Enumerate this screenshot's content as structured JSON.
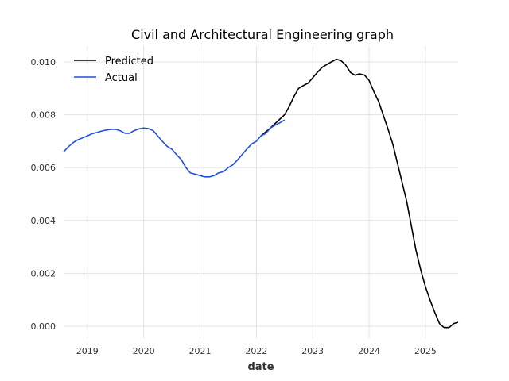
{
  "chart_data": {
    "type": "line",
    "title": "Civil and Architectural Engineering graph",
    "xlabel": "date",
    "ylabel": "",
    "xlim": [
      2018.58,
      2025.58
    ],
    "ylim": [
      -0.00045,
      0.0106
    ],
    "x_ticks": [
      2019,
      2020,
      2021,
      2022,
      2023,
      2024,
      2025
    ],
    "x_tick_labels": [
      "2019",
      "2020",
      "2021",
      "2022",
      "2023",
      "2024",
      "2025"
    ],
    "y_ticks": [
      0.0,
      0.002,
      0.004,
      0.006,
      0.008,
      0.01
    ],
    "y_tick_labels": [
      "0.000",
      "0.002",
      "0.004",
      "0.006",
      "0.008",
      "0.010"
    ],
    "grid": true,
    "legend_position": "top-left",
    "series": [
      {
        "name": "Predicted",
        "color": "#000000",
        "x": [
          2022.08,
          2022.25,
          2022.4,
          2022.5,
          2022.58,
          2022.67,
          2022.75,
          2022.83,
          2022.92,
          2023.0,
          2023.08,
          2023.17,
          2023.25,
          2023.33,
          2023.42,
          2023.5,
          2023.58,
          2023.67,
          2023.75,
          2023.83,
          2023.92,
          2024.0,
          2024.08,
          2024.17,
          2024.25,
          2024.33,
          2024.42,
          2024.5,
          2024.58,
          2024.67,
          2024.75,
          2024.83,
          2024.92,
          2025.0,
          2025.08,
          2025.17,
          2025.25,
          2025.33,
          2025.42,
          2025.5,
          2025.58
        ],
        "y": [
          0.0072,
          0.0075,
          0.0078,
          0.008,
          0.0083,
          0.0087,
          0.009,
          0.0091,
          0.0092,
          0.0094,
          0.0096,
          0.0098,
          0.0099,
          0.01,
          0.0101,
          0.01005,
          0.0099,
          0.0096,
          0.0095,
          0.00955,
          0.0095,
          0.0093,
          0.0089,
          0.0085,
          0.008,
          0.0075,
          0.0069,
          0.0062,
          0.0055,
          0.0047,
          0.0038,
          0.0029,
          0.0021,
          0.0015,
          0.001,
          0.0005,
          0.0001,
          -5e-05,
          -5e-05,
          0.0001,
          0.00015
        ]
      },
      {
        "name": "Actual",
        "color": "#1f4fe0",
        "x": [
          2018.58,
          2018.67,
          2018.75,
          2018.83,
          2018.92,
          2019.0,
          2019.08,
          2019.17,
          2019.25,
          2019.33,
          2019.42,
          2019.5,
          2019.58,
          2019.67,
          2019.75,
          2019.83,
          2019.92,
          2020.0,
          2020.08,
          2020.17,
          2020.25,
          2020.33,
          2020.42,
          2020.5,
          2020.58,
          2020.67,
          2020.75,
          2020.83,
          2020.92,
          2021.0,
          2021.08,
          2021.17,
          2021.25,
          2021.33,
          2021.42,
          2021.5,
          2021.58,
          2021.67,
          2021.75,
          2021.83,
          2021.92,
          2022.0,
          2022.08,
          2022.17,
          2022.25,
          2022.33,
          2022.42,
          2022.5
        ],
        "y": [
          0.0066,
          0.0068,
          0.00695,
          0.00705,
          0.00713,
          0.0072,
          0.00728,
          0.00733,
          0.00738,
          0.00742,
          0.00745,
          0.00745,
          0.0074,
          0.0073,
          0.0073,
          0.0074,
          0.00747,
          0.0075,
          0.00748,
          0.0074,
          0.0072,
          0.007,
          0.0068,
          0.0067,
          0.0065,
          0.0063,
          0.006,
          0.0058,
          0.00575,
          0.0057,
          0.00565,
          0.00565,
          0.0057,
          0.0058,
          0.00585,
          0.006,
          0.0061,
          0.0063,
          0.0065,
          0.0067,
          0.0069,
          0.007,
          0.0072,
          0.0073,
          0.0075,
          0.0076,
          0.0077,
          0.0078
        ]
      }
    ]
  }
}
